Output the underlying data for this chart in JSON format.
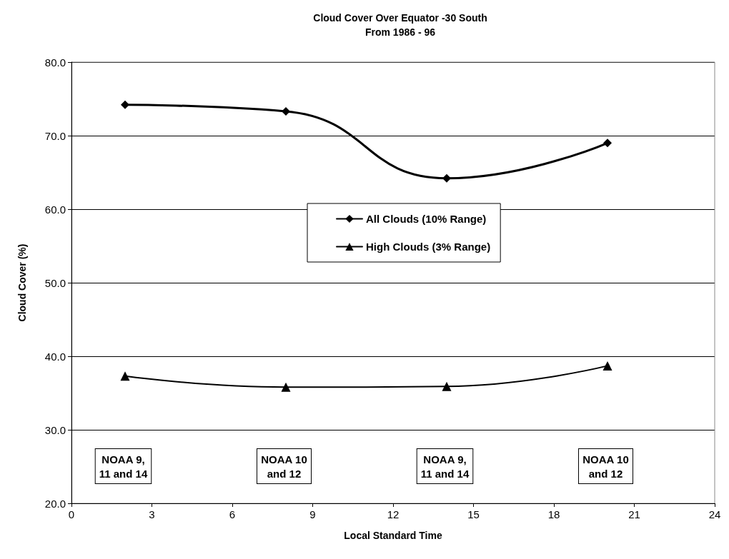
{
  "chart_data": {
    "type": "line",
    "title": "Cloud Cover Over Equator -30 South",
    "subtitle": "From 1986 - 96",
    "xlabel": "Local Standard Time",
    "ylabel": "Cloud Cover (%)",
    "x": [
      2,
      8,
      14,
      20
    ],
    "series": [
      {
        "name": "All Clouds (10% Range)",
        "color": "#000000",
        "marker": "diamond",
        "values": [
          74.2,
          73.3,
          64.2,
          69.0
        ]
      },
      {
        "name": "High Clouds (3% Range)",
        "color": "#000000",
        "marker": "triangle",
        "values": [
          37.3,
          35.8,
          35.9,
          38.7
        ]
      }
    ],
    "xlim": [
      0,
      24
    ],
    "xticks": [
      0,
      3,
      6,
      9,
      12,
      15,
      18,
      21,
      24
    ],
    "ylim": [
      20,
      80
    ],
    "yticks": [
      {
        "value": 20,
        "label": "20.0"
      },
      {
        "value": 30,
        "label": "30.0"
      },
      {
        "value": 40,
        "label": "40.0"
      },
      {
        "value": 50,
        "label": "50.0"
      },
      {
        "value": 60,
        "label": "60.0"
      },
      {
        "value": 70,
        "label": "70.0"
      },
      {
        "value": 80,
        "label": "80.0"
      }
    ],
    "grid": "y",
    "legend": "center",
    "line_style": "solid",
    "annotations": [
      "NOAA 9,\n11 and 14",
      "NOAA 10\nand 12",
      "NOAA 9,\n11 and 14",
      "NOAA 10\nand 12"
    ]
  }
}
